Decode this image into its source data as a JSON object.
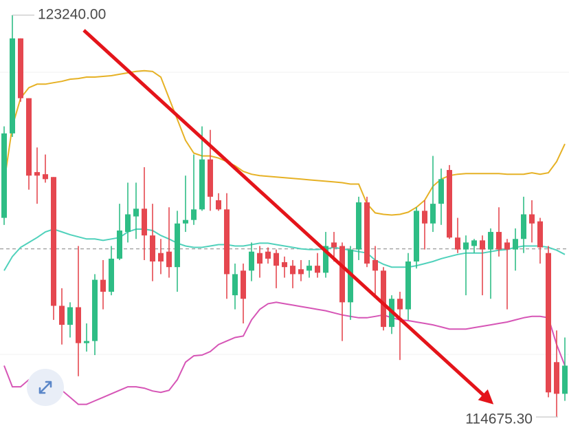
{
  "chart_data": {
    "type": "candlestick",
    "ylim": [
      114441,
      123563
    ],
    "up_color": "#2ebd85",
    "down_color": "#e5474f",
    "open": [
      118920,
      120720,
      122745,
      121470,
      119895,
      119850,
      119790,
      117045,
      116640,
      117015,
      116250,
      116295,
      117600,
      117345,
      118050,
      118620,
      118950,
      119115,
      118545,
      118170,
      118200,
      117870,
      118800,
      118875,
      119100,
      120165,
      119295,
      119100,
      117270,
      117795,
      117795,
      118170,
      118200,
      118170,
      117975,
      117900,
      117825,
      117795,
      117900,
      117750,
      118395,
      118320,
      117120,
      118245,
      119250,
      118020,
      117795,
      116595,
      117195,
      116970,
      117990,
      119070,
      118800,
      119220,
      119940,
      118500,
      118245,
      118320,
      118440,
      118245,
      118620,
      118395,
      118245,
      118470,
      118995,
      118845,
      118170,
      115845,
      115170
    ],
    "high": [
      120870,
      123240,
      122745,
      121470,
      120420,
      120270,
      119790,
      117420,
      117120,
      118320,
      116670,
      117720,
      118020,
      118320,
      119220,
      119670,
      119670,
      120000,
      119220,
      118470,
      119145,
      119070,
      119820,
      120270,
      120870,
      120795,
      119445,
      119445,
      117945,
      117945,
      118395,
      118320,
      118290,
      118245,
      118095,
      118020,
      118020,
      118020,
      118170,
      118620,
      118620,
      118395,
      118320,
      119370,
      119370,
      118320,
      117870,
      117270,
      117345,
      118170,
      119145,
      119295,
      120240,
      119970,
      120045,
      118920,
      118545,
      118470,
      118545,
      118695,
      119145,
      118470,
      118695,
      119370,
      119295,
      118920,
      118320,
      116520,
      116370
    ],
    "low": [
      118770,
      120645,
      121395,
      119520,
      119220,
      119670,
      116745,
      116220,
      116370,
      115545,
      116070,
      115995,
      116970,
      117270,
      118020,
      118395,
      118470,
      118020,
      117570,
      117720,
      117645,
      117345,
      118620,
      118770,
      119070,
      119070,
      119070,
      117195,
      116970,
      116670,
      117570,
      117645,
      117945,
      117420,
      117645,
      117420,
      117570,
      117645,
      117645,
      117645,
      117990,
      116295,
      116745,
      118020,
      117870,
      117270,
      116520,
      116445,
      115890,
      116745,
      117840,
      118245,
      118620,
      118770,
      118470,
      118170,
      117270,
      118170,
      117270,
      117195,
      118095,
      116970,
      117795,
      118170,
      118395,
      117945,
      115095,
      114675.3,
      115020
    ],
    "close": [
      120720,
      122745,
      121470,
      119820,
      119820,
      119745,
      117045,
      116640,
      117015,
      116250,
      116295,
      117600,
      117345,
      118050,
      118650,
      118995,
      119115,
      118545,
      117990,
      117990,
      117870,
      118800,
      118875,
      119100,
      120165,
      119370,
      119100,
      117720,
      117720,
      117195,
      118200,
      117945,
      118050,
      117900,
      117870,
      117720,
      117720,
      117900,
      117750,
      118320,
      118290,
      117120,
      118245,
      119250,
      117945,
      117795,
      116595,
      117195,
      116970,
      117990,
      119070,
      118800,
      119220,
      119745,
      118500,
      118245,
      118395,
      118440,
      118245,
      118620,
      118245,
      118245,
      118470,
      118995,
      118800,
      118290,
      115200,
      115170,
      115770
    ],
    "bands": [
      {
        "color": "#e6b124",
        "values": [
          119670,
          120870,
          121470,
          121695,
          121770,
          121770,
          121800,
          121830,
          121875,
          121890,
          121920,
          121920,
          121935,
          121950,
          121980,
          122010,
          122040,
          122055,
          122040,
          121920,
          121470,
          121020,
          120570,
          120300,
          120240,
          120240,
          120195,
          120120,
          120030,
          119910,
          119850,
          119820,
          119805,
          119790,
          119775,
          119760,
          119745,
          119730,
          119715,
          119700,
          119685,
          119670,
          119640,
          119640,
          119220,
          119025,
          118995,
          118980,
          118995,
          119040,
          119145,
          119295,
          119595,
          119745,
          119820,
          119850,
          119865,
          119865,
          119865,
          119865,
          119865,
          119850,
          119850,
          119850,
          119880,
          119850,
          119880,
          120120,
          120495
        ]
      },
      {
        "color": "#4fd1bb",
        "values": [
          117795,
          118095,
          118290,
          118395,
          118500,
          118620,
          118680,
          118620,
          118560,
          118515,
          118470,
          118470,
          118440,
          118470,
          118500,
          118620,
          118680,
          118680,
          118650,
          118545,
          118470,
          118380,
          118320,
          118290,
          118290,
          118320,
          118350,
          118350,
          118320,
          118320,
          118350,
          118380,
          118380,
          118350,
          118320,
          118290,
          118260,
          118245,
          118245,
          118260,
          118290,
          118260,
          118230,
          118200,
          118170,
          118020,
          117930,
          117870,
          117870,
          117870,
          117900,
          117945,
          117990,
          118050,
          118095,
          118140,
          118170,
          118170,
          118170,
          118200,
          118230,
          118245,
          118290,
          118320,
          118320,
          118320,
          118290,
          118230,
          118140
        ]
      },
      {
        "color": "#d655b6",
        "values": [
          115770,
          115320,
          115320,
          115470,
          115545,
          115620,
          115470,
          115245,
          115095,
          114945,
          114945,
          115020,
          115095,
          115170,
          115245,
          115320,
          115320,
          115290,
          115230,
          115200,
          115245,
          115470,
          115845,
          115980,
          115995,
          116070,
          116220,
          116295,
          116370,
          116400,
          116745,
          116970,
          117090,
          117120,
          117090,
          117060,
          117030,
          117000,
          116970,
          116940,
          116895,
          116850,
          116820,
          116790,
          116790,
          116820,
          116850,
          116790,
          116745,
          116730,
          116700,
          116670,
          116640,
          116595,
          116550,
          116550,
          116550,
          116580,
          116610,
          116640,
          116670,
          116700,
          116745,
          116790,
          116820,
          116820,
          116790,
          116220,
          115770
        ]
      }
    ],
    "price_line": 118260,
    "max_label": {
      "value": 123240,
      "label": "123240.00"
    },
    "min_label": {
      "value": 114675.3,
      "label": "114675.30"
    }
  }
}
